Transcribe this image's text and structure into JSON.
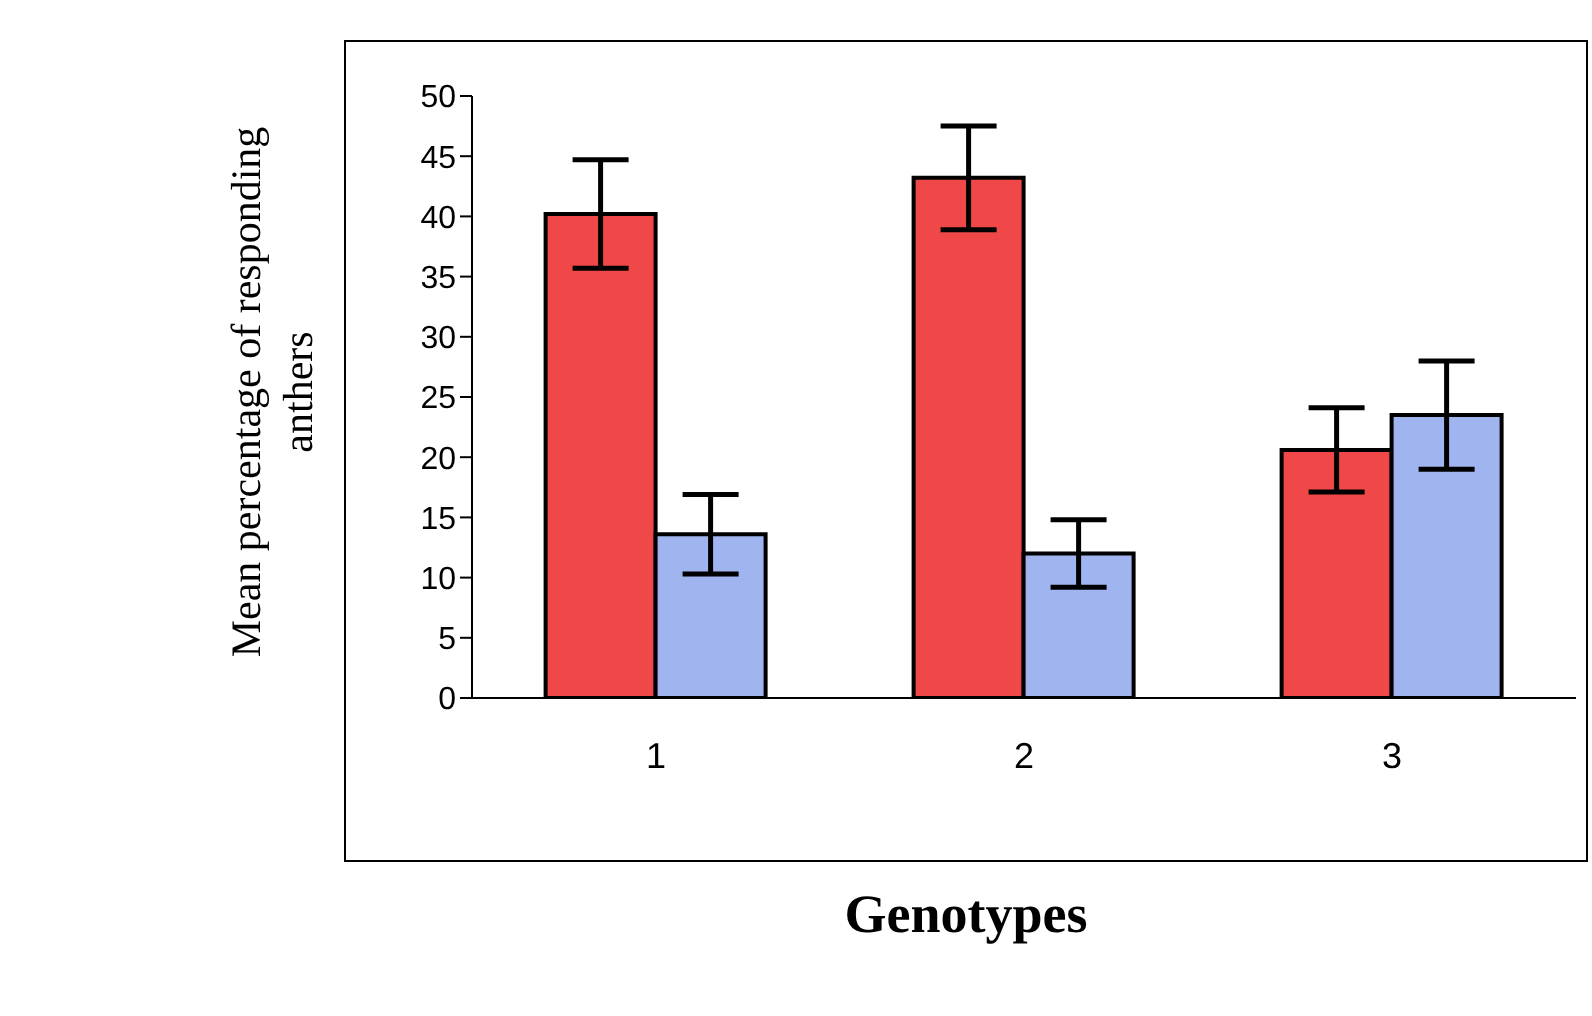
{
  "chart_data": {
    "type": "bar",
    "xlabel": "Genotypes",
    "ylabel": "Mean percentage of responding anthers",
    "categories": [
      "1",
      "2",
      "3"
    ],
    "series": [
      {
        "color": "#f04848",
        "values": [
          40.2,
          43.2,
          20.6
        ],
        "errors": [
          4.5,
          4.3,
          3.5
        ]
      },
      {
        "color": "#a0b4f0",
        "values": [
          13.6,
          12.0,
          23.5
        ],
        "errors": [
          3.3,
          2.8,
          4.5
        ]
      }
    ],
    "ylim": [
      0,
      50
    ],
    "yticks": [
      0,
      5,
      10,
      15,
      20,
      25,
      30,
      35,
      40,
      45,
      50
    ],
    "grid": false,
    "legend": false
  }
}
